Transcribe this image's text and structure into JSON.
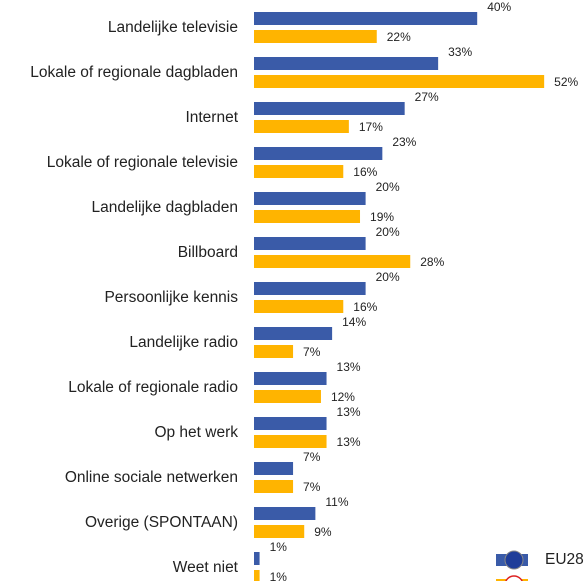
{
  "chart_data": {
    "type": "bar",
    "orientation": "horizontal",
    "categories": [
      "Landelijke televisie",
      "Lokale of regionale dagbladen",
      "Internet",
      "Lokale of regionale televisie",
      "Landelijke dagbladen",
      "Billboard",
      "Persoonlijke kennis",
      "Landelijke radio",
      "Lokale of regionale radio",
      "Op het werk",
      "Online sociale netwerken",
      "Overige (SPONTAAN)",
      "Weet niet"
    ],
    "series": [
      {
        "name": "EU28",
        "color": "#3a5ba8",
        "values": [
          40,
          33,
          27,
          23,
          20,
          20,
          20,
          14,
          13,
          13,
          7,
          11,
          1
        ],
        "value_labels": [
          "40%",
          "33%",
          "27%",
          "23%",
          "20%",
          "20%",
          "20%",
          "14%",
          "13%",
          "13%",
          "7%",
          "11%",
          "1%"
        ]
      },
      {
        "color": "#ffb400",
        "values": [
          22,
          52,
          17,
          16,
          19,
          28,
          16,
          7,
          12,
          13,
          7,
          9,
          1
        ],
        "value_labels": [
          "22%",
          "52%",
          "17%",
          "16%",
          "19%",
          "28%",
          "16%",
          "7%",
          "12%",
          "13%",
          "7%",
          "9%",
          "1%"
        ]
      }
    ]
  }
}
